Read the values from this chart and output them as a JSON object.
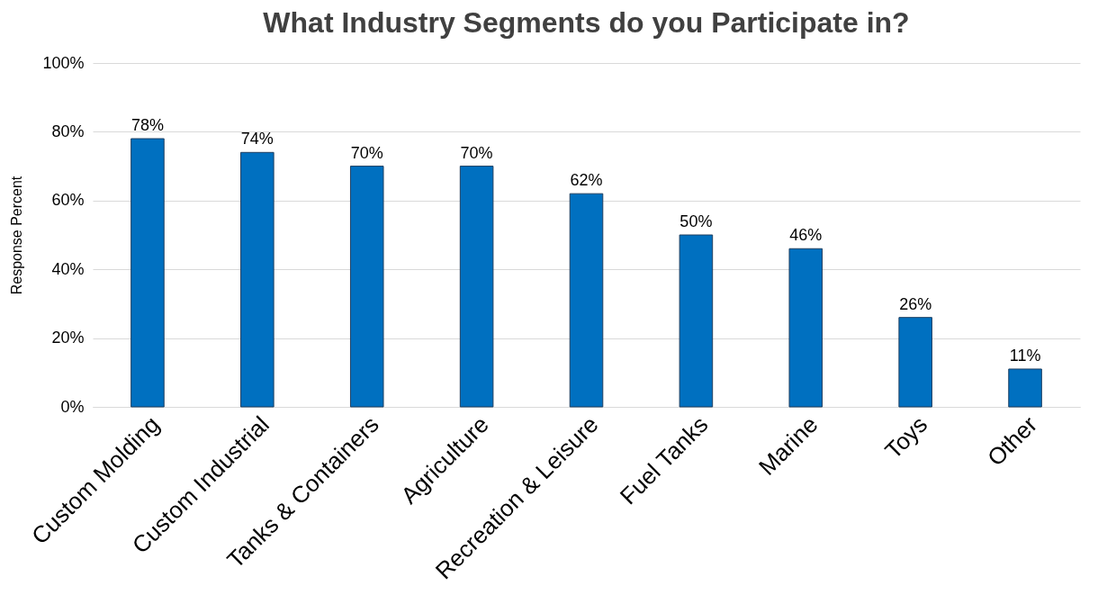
{
  "chart_data": {
    "type": "bar",
    "title": "What Industry Segments do you Participate in?",
    "ylabel": "Response Percent",
    "categories": [
      "Custom Molding",
      "Custom Industrial",
      "Tanks & Containers",
      "Agriculture",
      "Recreation & Leisure",
      "Fuel Tanks",
      "Marine",
      "Toys",
      "Other"
    ],
    "values": [
      78,
      74,
      70,
      70,
      62,
      50,
      46,
      26,
      11
    ],
    "value_labels": [
      "78%",
      "74%",
      "70%",
      "70%",
      "62%",
      "50%",
      "46%",
      "26%",
      "11%"
    ],
    "color": "#0070c0",
    "ylim": [
      0,
      100
    ],
    "yticks": [
      {
        "value": 0,
        "label": "0%"
      },
      {
        "value": 20,
        "label": "20%"
      },
      {
        "value": 40,
        "label": "40%"
      },
      {
        "value": 60,
        "label": "60%"
      },
      {
        "value": 80,
        "label": "80%"
      },
      {
        "value": 100,
        "label": "100%"
      }
    ],
    "grid": "y"
  }
}
